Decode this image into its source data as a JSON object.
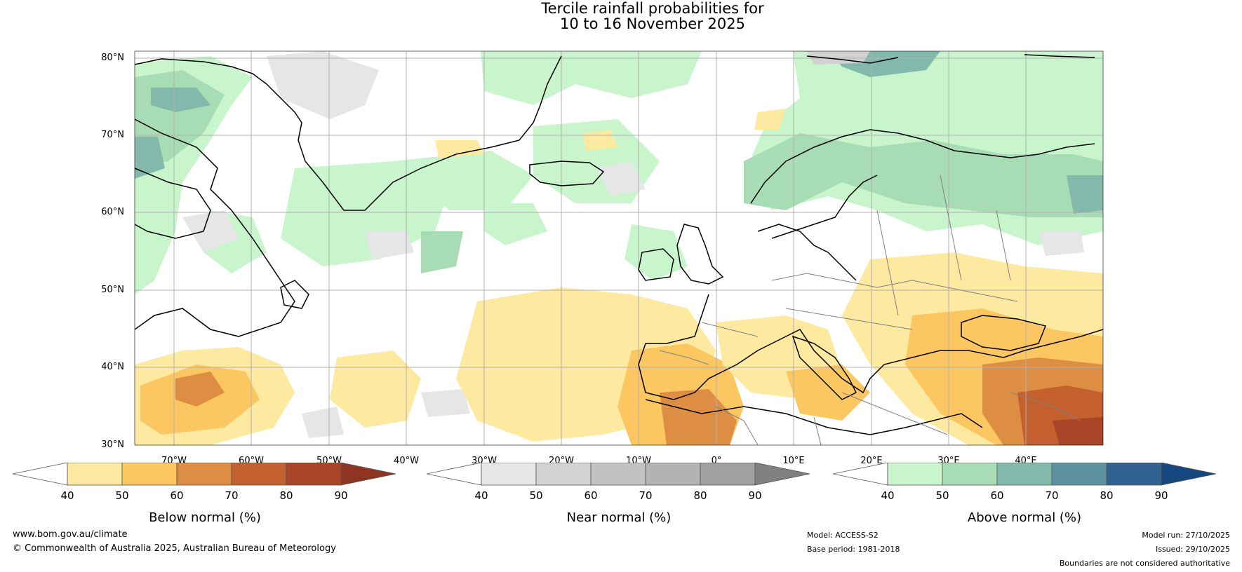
{
  "title_line1": "Tercile rainfall probabilities for",
  "title_line2": "10 to 16 November 2025",
  "lat_labels": [
    "80°N",
    "70°N",
    "60°N",
    "50°N",
    "40°N",
    "30°N"
  ],
  "lon_labels": [
    "70°W",
    "60°W",
    "50°W",
    "40°W",
    "30°W",
    "20°W",
    "10°W",
    "0°",
    "10°E",
    "20°E",
    "30°E",
    "40°E"
  ],
  "colorbars": [
    {
      "title": "Below normal (%)",
      "ticks": [
        "40",
        "50",
        "60",
        "70",
        "80",
        "90"
      ],
      "colors": [
        "#ffffff",
        "#fde9a0",
        "#fcc661",
        "#de8e43",
        "#c4602f",
        "#aa4426",
        "#8f3420"
      ]
    },
    {
      "title": "Near normal (%)",
      "ticks": [
        "40",
        "50",
        "60",
        "70",
        "80",
        "90"
      ],
      "colors": [
        "#ffffff",
        "#e6e6e6",
        "#d2d2d2",
        "#c2c2c2",
        "#b3b3b3",
        "#a0a0a0",
        "#808080"
      ]
    },
    {
      "title": "Above normal (%)",
      "ticks": [
        "40",
        "50",
        "60",
        "70",
        "80",
        "90"
      ],
      "colors": [
        "#ffffff",
        "#c9f5cc",
        "#a8dcb5",
        "#83b9ab",
        "#5d91a0",
        "#316292",
        "#13477d"
      ]
    }
  ],
  "footer": {
    "website": "www.bom.gov.au/climate",
    "copyright": "© Commonwealth of Australia 2025, Australian Bureau of Meteorology",
    "model": "Model: ACCESS-S2",
    "base_period": "Base period: 1981-2018",
    "model_run": "Model run: 27/10/2025",
    "issued": "Issued: 29/10/2025",
    "disclaimer": "Boundaries are not considered authoritative"
  }
}
